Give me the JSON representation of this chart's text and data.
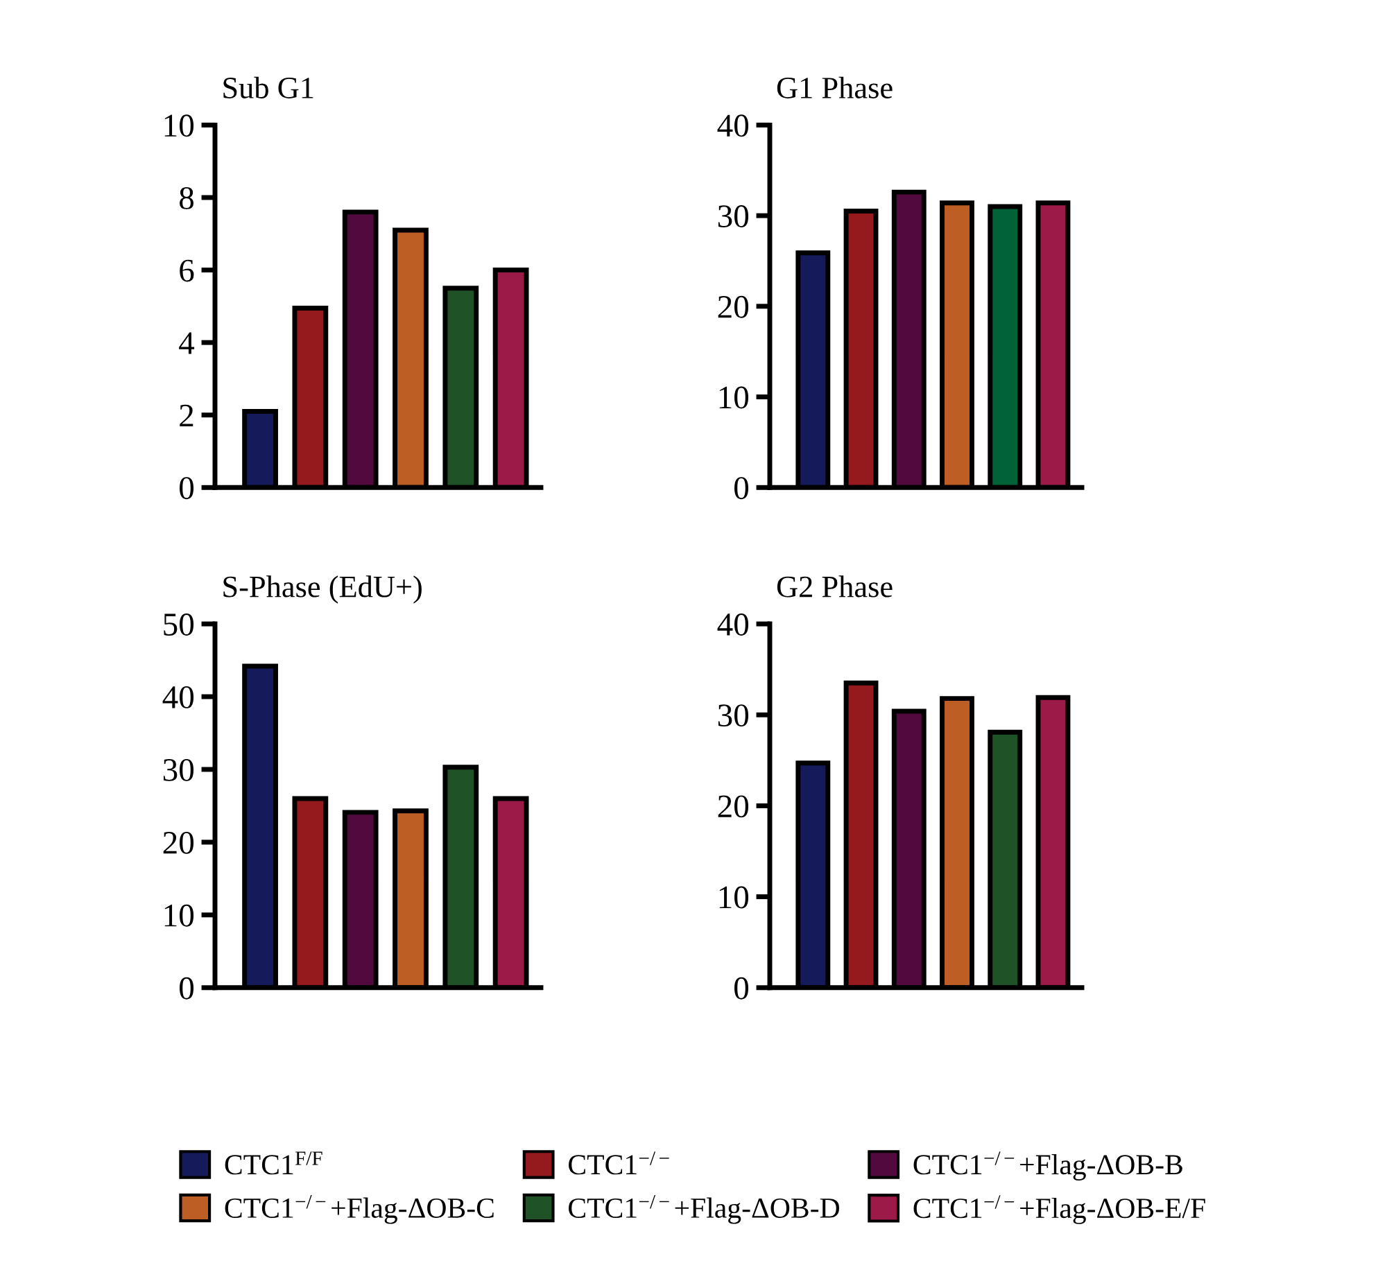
{
  "chart_data": [
    {
      "type": "bar",
      "title": "Sub G1",
      "categories": [
        null
      ],
      "ylim": [
        0,
        10
      ],
      "yticks": [
        0,
        2,
        4,
        6,
        8,
        10
      ],
      "grid": false,
      "series": [
        {
          "color": "#141a5a",
          "values": [
            2.1
          ]
        },
        {
          "color": "#951a1e",
          "values": [
            4.95
          ]
        },
        {
          "color": "#520a3e",
          "values": [
            7.6
          ]
        },
        {
          "color": "#bd5e24",
          "values": [
            7.1
          ]
        },
        {
          "color": "#1f5226",
          "values": [
            5.5
          ]
        },
        {
          "color": "#9b1a48",
          "values": [
            6.0
          ]
        }
      ]
    },
    {
      "type": "bar",
      "title": "G1 Phase",
      "categories": [
        null
      ],
      "ylim": [
        0,
        40
      ],
      "yticks": [
        0,
        10,
        20,
        30,
        40
      ],
      "grid": false,
      "series": [
        {
          "color": "#141a5a",
          "values": [
            25.9
          ]
        },
        {
          "color": "#951a1e",
          "values": [
            30.5
          ]
        },
        {
          "color": "#520a3e",
          "values": [
            32.6
          ]
        },
        {
          "color": "#bd5e24",
          "values": [
            31.4
          ]
        },
        {
          "color": "#01623a",
          "values": [
            31.0
          ]
        },
        {
          "color": "#9b1a48",
          "values": [
            31.4
          ]
        }
      ]
    },
    {
      "type": "bar",
      "title": "S-Phase (EdU+)",
      "categories": [
        null
      ],
      "ylim": [
        0,
        50
      ],
      "yticks": [
        0,
        10,
        20,
        30,
        40,
        50
      ],
      "grid": false,
      "series": [
        {
          "color": "#141a5a",
          "values": [
            44.2
          ]
        },
        {
          "color": "#951a1e",
          "values": [
            26.0
          ]
        },
        {
          "color": "#520a3e",
          "values": [
            24.1
          ]
        },
        {
          "color": "#bd5e24",
          "values": [
            24.3
          ]
        },
        {
          "color": "#1f5226",
          "values": [
            30.3
          ]
        },
        {
          "color": "#9b1a48",
          "values": [
            26.0
          ]
        }
      ]
    },
    {
      "type": "bar",
      "title": "G2 Phase",
      "categories": [
        null
      ],
      "ylim": [
        0,
        40
      ],
      "yticks": [
        0,
        10,
        20,
        30,
        40
      ],
      "grid": false,
      "legend": "bottom",
      "series": [
        {
          "name": "CTC1$^{F/F}$",
          "color": "#141a5a",
          "values": [
            24.7
          ]
        },
        {
          "name": "CTC1$^{−/−}$",
          "color": "#951a1e",
          "values": [
            33.5
          ]
        },
        {
          "name": "CTC1$^{−/−}$+Flag-ΔOB-B",
          "color": "#520a3e",
          "values": [
            30.4
          ]
        },
        {
          "name": "CTC1$^{−/−}$+Flag-ΔOB-C",
          "color": "#bd5e24",
          "values": [
            31.8
          ]
        },
        {
          "name": "CTC1$^{−/−}$+Flag-ΔOB-D",
          "color": "#1f5226",
          "values": [
            28.1
          ]
        },
        {
          "name": "CTC1$^{−/−}$+Flag-ΔOB-E/F",
          "color": "#9b1a48",
          "values": [
            31.9
          ]
        }
      ]
    }
  ]
}
